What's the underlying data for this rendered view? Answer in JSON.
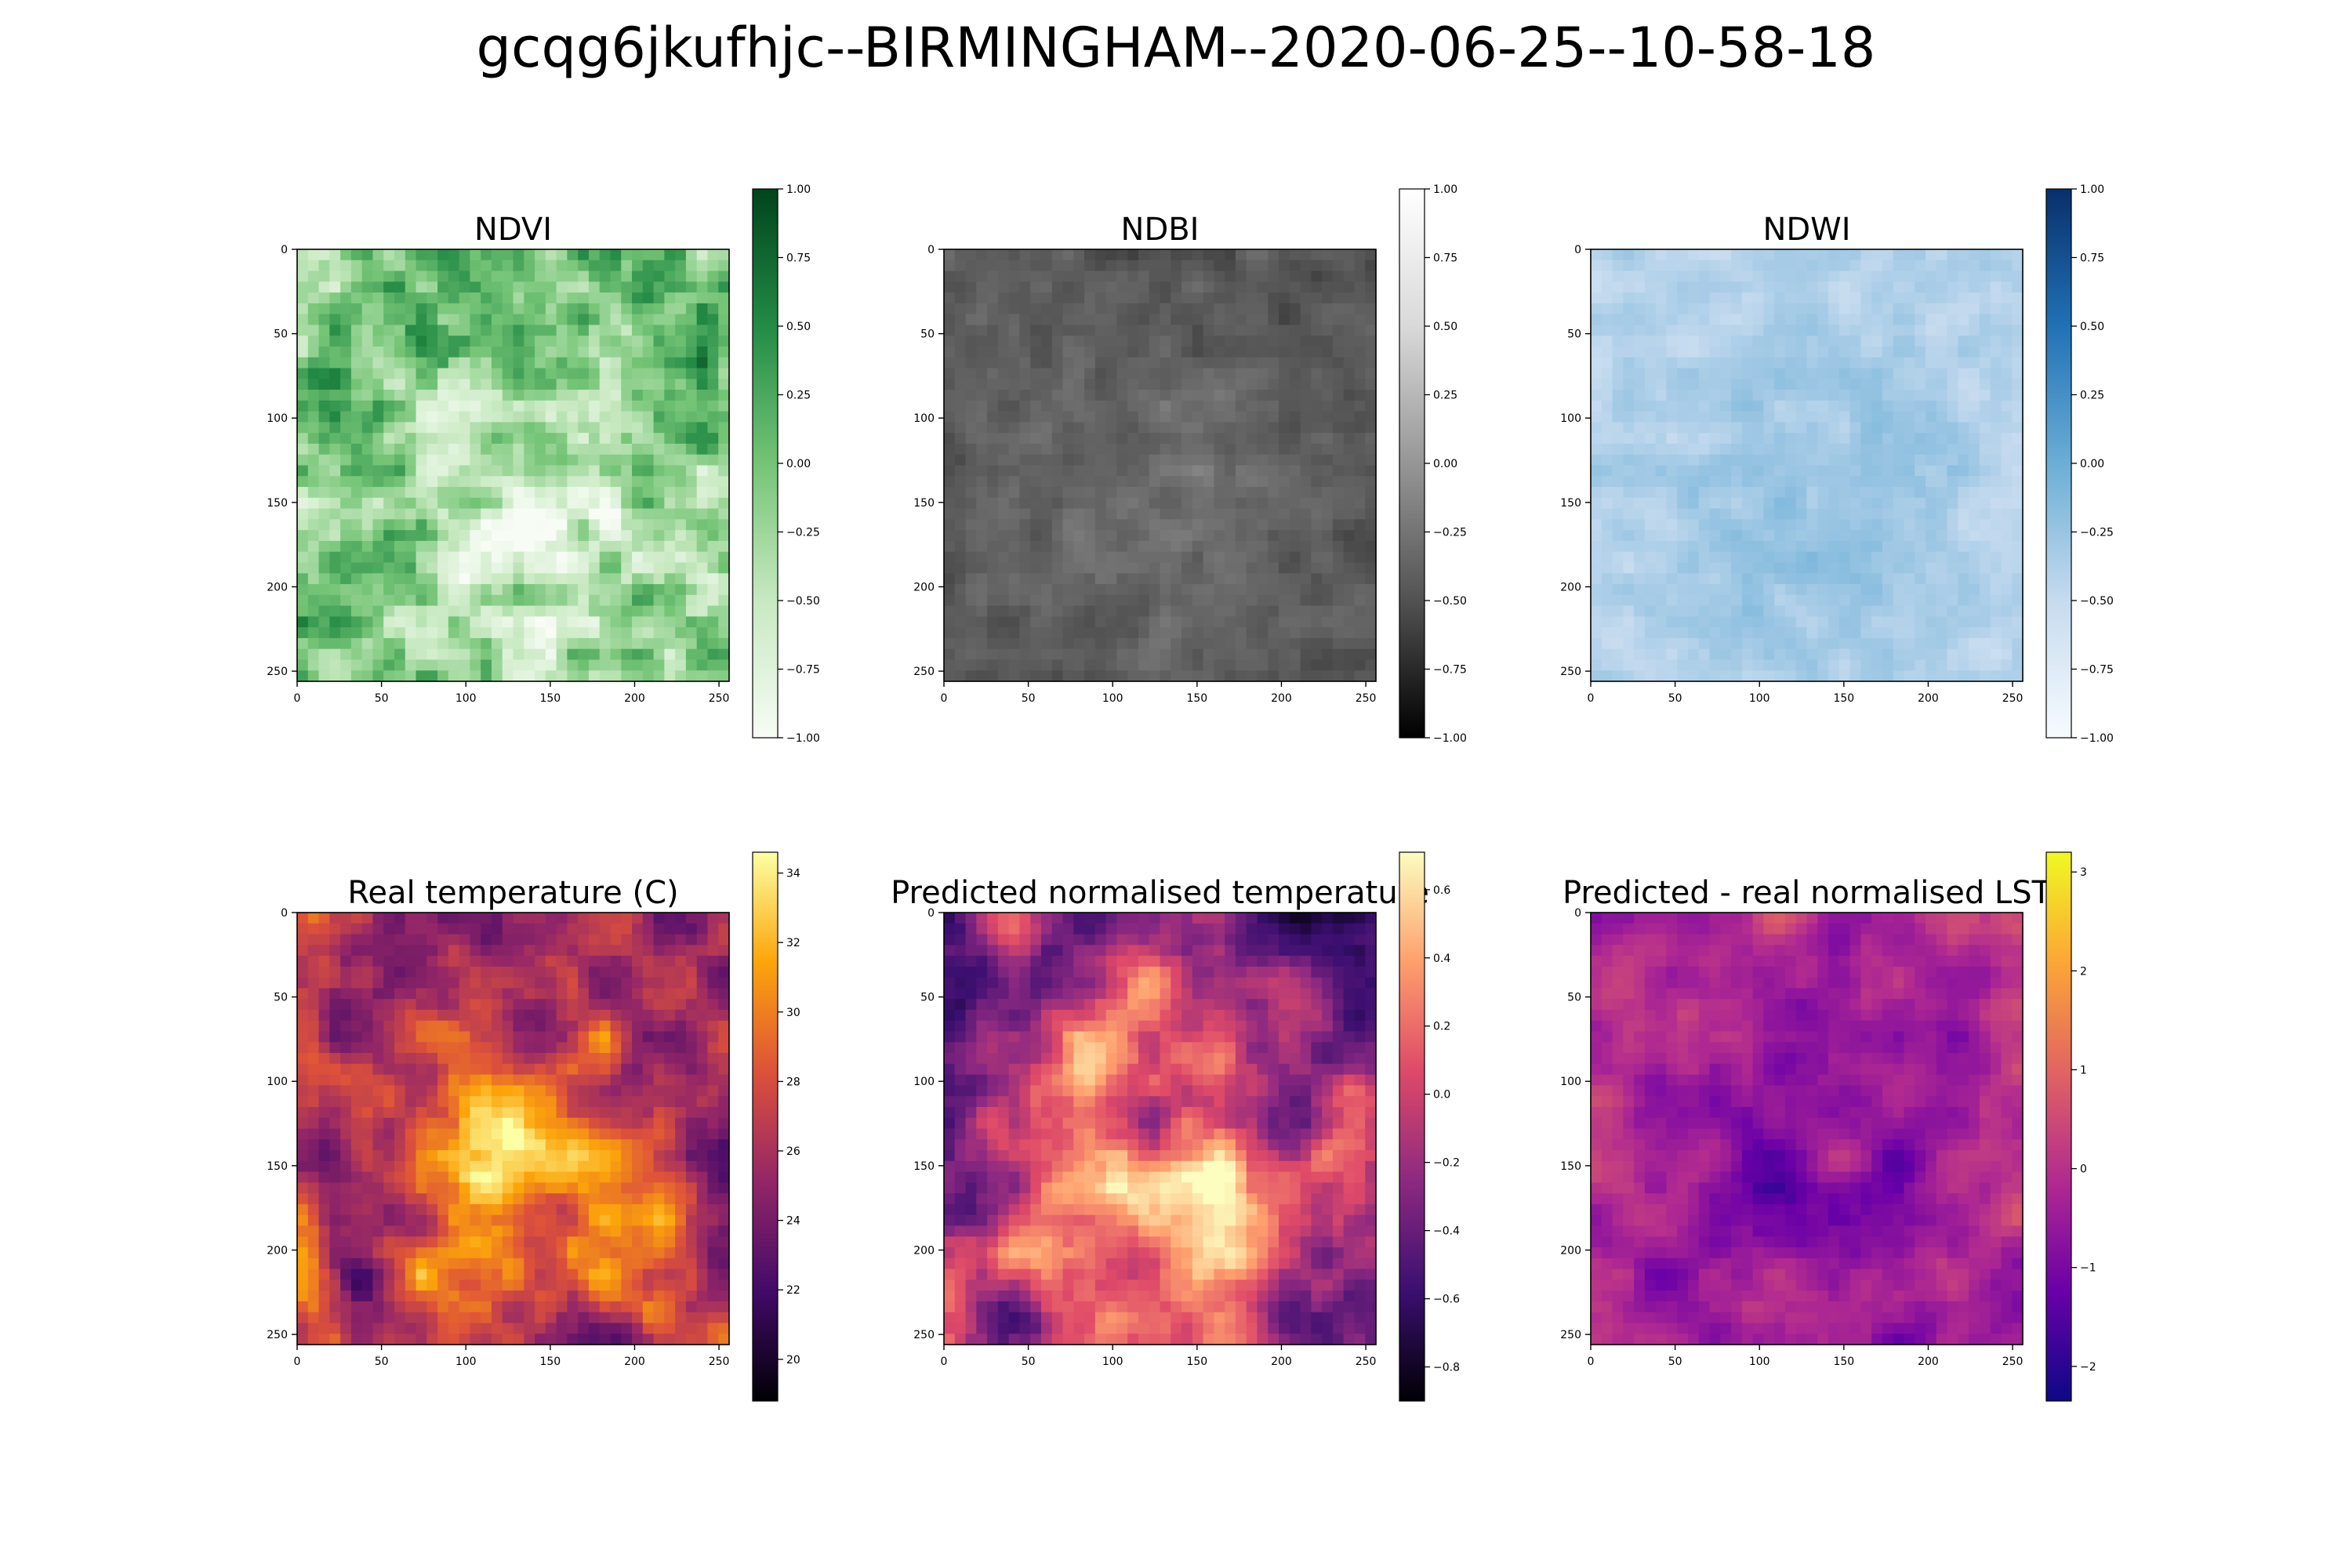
{
  "figure": {
    "title": "gcqg6jkufhjc--BIRMINGHAM--2020-06-25--10-58-18"
  },
  "chart_data": [
    {
      "type": "heatmap",
      "title": "NDVI",
      "colormap": "Greens",
      "xlim": [
        0,
        256
      ],
      "ylim": [
        256,
        0
      ],
      "x_ticks": [
        0,
        50,
        100,
        150,
        200,
        250
      ],
      "y_ticks": [
        0,
        50,
        100,
        150,
        200,
        250
      ],
      "colorbar": {
        "range": [
          -1.0,
          1.0
        ],
        "ticks": [
          "1.00",
          "0.75",
          "0.50",
          "0.25",
          "0.00",
          "−0.25",
          "−0.50",
          "−0.75",
          "−1.00"
        ]
      }
    },
    {
      "type": "heatmap",
      "title": "NDBI",
      "colormap": "Greys_r",
      "xlim": [
        0,
        256
      ],
      "ylim": [
        256,
        0
      ],
      "x_ticks": [
        0,
        50,
        100,
        150,
        200,
        250
      ],
      "y_ticks": [
        0,
        50,
        100,
        150,
        200,
        250
      ],
      "colorbar": {
        "range": [
          -1.0,
          1.0
        ],
        "ticks": [
          "1.00",
          "0.75",
          "0.50",
          "0.25",
          "0.00",
          "−0.25",
          "−0.50",
          "−0.75",
          "−1.00"
        ]
      }
    },
    {
      "type": "heatmap",
      "title": "NDWI",
      "colormap": "Blues",
      "xlim": [
        0,
        256
      ],
      "ylim": [
        256,
        0
      ],
      "x_ticks": [
        0,
        50,
        100,
        150,
        200,
        250
      ],
      "y_ticks": [
        0,
        50,
        100,
        150,
        200,
        250
      ],
      "colorbar": {
        "range": [
          -1.0,
          1.0
        ],
        "ticks": [
          "1.00",
          "0.75",
          "0.50",
          "0.25",
          "0.00",
          "−0.25",
          "−0.50",
          "−0.75",
          "−1.00"
        ]
      }
    },
    {
      "type": "heatmap",
      "title": "Real temperature (C)",
      "colormap": "inferno",
      "xlim": [
        0,
        256
      ],
      "ylim": [
        256,
        0
      ],
      "x_ticks": [
        0,
        50,
        100,
        150,
        200,
        250
      ],
      "y_ticks": [
        0,
        50,
        100,
        150,
        200,
        250
      ],
      "colorbar": {
        "range": [
          18.8,
          34.6
        ],
        "tick_values": [
          34,
          32,
          30,
          28,
          26,
          24,
          22,
          20
        ],
        "ticks": [
          "34",
          "32",
          "30",
          "28",
          "26",
          "24",
          "22",
          "20"
        ]
      }
    },
    {
      "type": "heatmap",
      "title": "Predicted normalised temperature",
      "colormap": "magma",
      "xlim": [
        0,
        256
      ],
      "ylim": [
        256,
        0
      ],
      "x_ticks": [
        0,
        50,
        100,
        150,
        200,
        250
      ],
      "y_ticks": [
        0,
        50,
        100,
        150,
        200,
        250
      ],
      "colorbar": {
        "range": [
          -0.9,
          0.71
        ],
        "tick_values": [
          0.6,
          0.4,
          0.2,
          0.0,
          -0.2,
          -0.4,
          -0.6,
          -0.8
        ],
        "ticks": [
          "0.6",
          "0.4",
          "0.2",
          "0.0",
          "−0.2",
          "−0.4",
          "−0.6",
          "−0.8"
        ]
      }
    },
    {
      "type": "heatmap",
      "title": "Predicted - real normalised LST",
      "colormap": "plasma",
      "xlim": [
        0,
        256
      ],
      "ylim": [
        256,
        0
      ],
      "x_ticks": [
        0,
        50,
        100,
        150,
        200,
        250
      ],
      "y_ticks": [
        0,
        50,
        100,
        150,
        200,
        250
      ],
      "colorbar": {
        "range": [
          -2.35,
          3.2
        ],
        "tick_values": [
          3,
          2,
          1,
          0,
          -1,
          -2
        ],
        "ticks": [
          "3",
          "2",
          "1",
          "0",
          "−1",
          "−2"
        ]
      }
    }
  ],
  "colors": {
    "Greens": [
      "#f7fcf5",
      "#c7e9c0",
      "#74c476",
      "#238b45",
      "#00441b"
    ],
    "Greys_r": [
      "#000000",
      "#525252",
      "#969696",
      "#d9d9d9",
      "#ffffff"
    ],
    "Blues": [
      "#f7fbff",
      "#c6dbef",
      "#6baed6",
      "#2171b5",
      "#08306b"
    ],
    "inferno": [
      "#000004",
      "#420a68",
      "#932667",
      "#dd513a",
      "#fca50a",
      "#fcffa4"
    ],
    "magma": [
      "#000004",
      "#3b0f70",
      "#8c2981",
      "#de4968",
      "#fe9f6d",
      "#fcfdbf"
    ],
    "plasma": [
      "#0d0887",
      "#6a00a8",
      "#b12a90",
      "#e16462",
      "#fca636",
      "#f0f921"
    ]
  }
}
